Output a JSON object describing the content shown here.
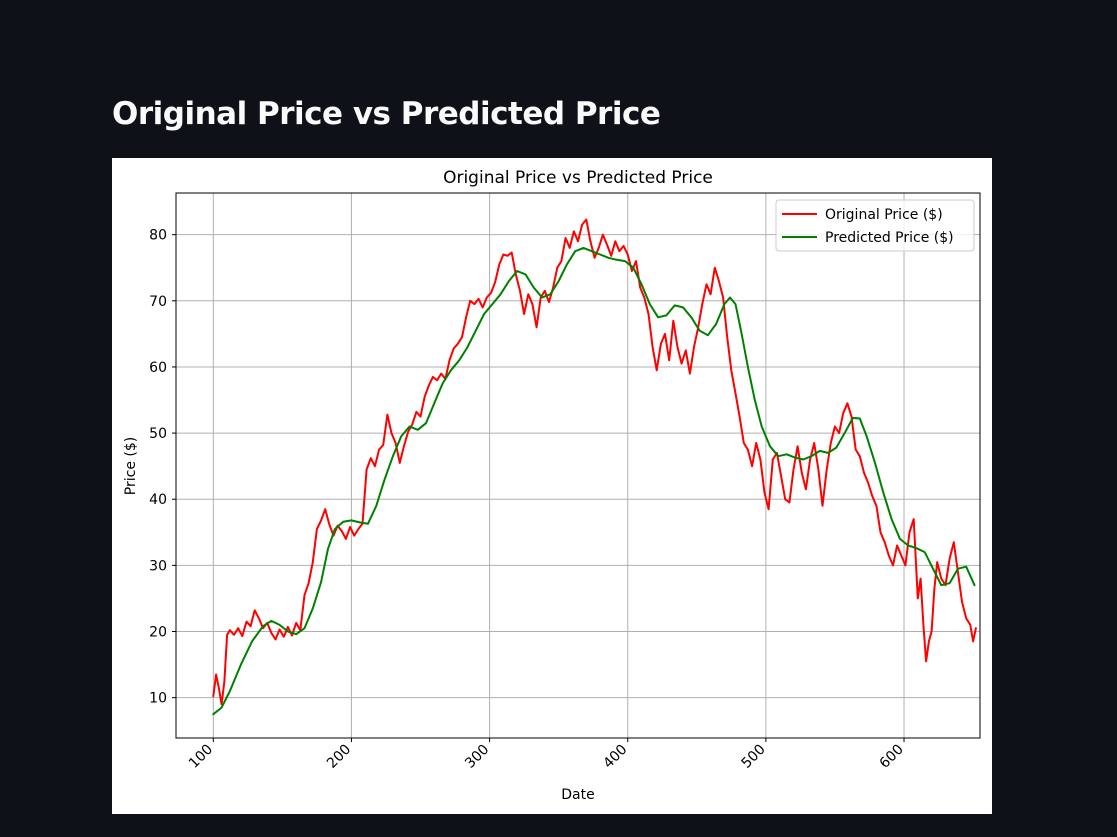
{
  "page": {
    "title": "Original Price vs Predicted Price"
  },
  "chart_data": {
    "type": "line",
    "title": "Original Price vs Predicted Price",
    "xlabel": "Date",
    "ylabel": "Price ($)",
    "xlim": [
      73,
      655
    ],
    "ylim": [
      3.9,
      86.3
    ],
    "xticks": [
      100,
      200,
      300,
      400,
      500,
      600
    ],
    "yticks": [
      10,
      20,
      30,
      40,
      50,
      60,
      70,
      80
    ],
    "grid": true,
    "legend_position": "top-right",
    "series": [
      {
        "name": "Original Price ($)",
        "color": "#ff0000",
        "points": [
          [
            100,
            10.2
          ],
          [
            102,
            13.5
          ],
          [
            104,
            11.5
          ],
          [
            106,
            9.0
          ],
          [
            108,
            12.5
          ],
          [
            110,
            19.5
          ],
          [
            112,
            20.2
          ],
          [
            115,
            19.5
          ],
          [
            118,
            20.5
          ],
          [
            121,
            19.3
          ],
          [
            124,
            21.5
          ],
          [
            127,
            20.8
          ],
          [
            130,
            23.2
          ],
          [
            133,
            22.0
          ],
          [
            136,
            20.5
          ],
          [
            139,
            21.3
          ],
          [
            142,
            19.8
          ],
          [
            145,
            18.8
          ],
          [
            148,
            20.3
          ],
          [
            151,
            19.2
          ],
          [
            154,
            20.7
          ],
          [
            157,
            19.4
          ],
          [
            160,
            21.3
          ],
          [
            163,
            20.2
          ],
          [
            166,
            25.5
          ],
          [
            169,
            27.3
          ],
          [
            172,
            30.5
          ],
          [
            175,
            35.5
          ],
          [
            178,
            36.8
          ],
          [
            181,
            38.5
          ],
          [
            184,
            36.2
          ],
          [
            187,
            34.5
          ],
          [
            190,
            36.0
          ],
          [
            193,
            35.2
          ],
          [
            196,
            34.0
          ],
          [
            199,
            35.8
          ],
          [
            202,
            34.5
          ],
          [
            205,
            35.5
          ],
          [
            208,
            36.3
          ],
          [
            211,
            44.5
          ],
          [
            214,
            46.2
          ],
          [
            217,
            45.0
          ],
          [
            220,
            47.5
          ],
          [
            223,
            48.2
          ],
          [
            226,
            52.8
          ],
          [
            229,
            50.0
          ],
          [
            232,
            48.5
          ],
          [
            235,
            45.5
          ],
          [
            238,
            48.0
          ],
          [
            241,
            50.2
          ],
          [
            244,
            51.3
          ],
          [
            247,
            53.2
          ],
          [
            250,
            52.5
          ],
          [
            253,
            55.5
          ],
          [
            256,
            57.2
          ],
          [
            259,
            58.5
          ],
          [
            262,
            58.0
          ],
          [
            265,
            59.0
          ],
          [
            268,
            58.2
          ],
          [
            271,
            61.0
          ],
          [
            274,
            62.8
          ],
          [
            277,
            63.5
          ],
          [
            280,
            64.5
          ],
          [
            283,
            67.5
          ],
          [
            286,
            70.0
          ],
          [
            289,
            69.5
          ],
          [
            292,
            70.3
          ],
          [
            295,
            69.0
          ],
          [
            298,
            70.5
          ],
          [
            301,
            71.2
          ],
          [
            304,
            72.8
          ],
          [
            307,
            75.5
          ],
          [
            310,
            77.0
          ],
          [
            313,
            76.8
          ],
          [
            316,
            77.3
          ],
          [
            319,
            74.0
          ],
          [
            322,
            71.5
          ],
          [
            325,
            68.0
          ],
          [
            328,
            71.0
          ],
          [
            331,
            69.5
          ],
          [
            334,
            66.0
          ],
          [
            337,
            70.5
          ],
          [
            340,
            71.5
          ],
          [
            343,
            69.8
          ],
          [
            346,
            72.0
          ],
          [
            349,
            75.0
          ],
          [
            352,
            76.0
          ],
          [
            355,
            79.5
          ],
          [
            358,
            78.0
          ],
          [
            361,
            80.5
          ],
          [
            364,
            79.0
          ],
          [
            367,
            81.5
          ],
          [
            370,
            82.3
          ],
          [
            373,
            79.0
          ],
          [
            376,
            76.5
          ],
          [
            379,
            78.0
          ],
          [
            382,
            80.0
          ],
          [
            385,
            78.5
          ],
          [
            388,
            76.8
          ],
          [
            391,
            79.0
          ],
          [
            394,
            77.5
          ],
          [
            397,
            78.3
          ],
          [
            400,
            77.0
          ],
          [
            403,
            74.5
          ],
          [
            406,
            76.0
          ],
          [
            409,
            72.0
          ],
          [
            412,
            70.5
          ],
          [
            415,
            68.0
          ],
          [
            418,
            63.0
          ],
          [
            421,
            59.5
          ],
          [
            424,
            63.5
          ],
          [
            427,
            65.0
          ],
          [
            430,
            61.0
          ],
          [
            433,
            67.0
          ],
          [
            436,
            63.0
          ],
          [
            439,
            60.5
          ],
          [
            442,
            62.5
          ],
          [
            445,
            59.0
          ],
          [
            448,
            63.0
          ],
          [
            451,
            66.0
          ],
          [
            454,
            69.5
          ],
          [
            457,
            72.5
          ],
          [
            460,
            71.0
          ],
          [
            463,
            75.0
          ],
          [
            466,
            73.0
          ],
          [
            469,
            70.5
          ],
          [
            472,
            64.5
          ],
          [
            475,
            59.5
          ],
          [
            478,
            56.0
          ],
          [
            481,
            52.5
          ],
          [
            484,
            48.5
          ],
          [
            487,
            47.5
          ],
          [
            490,
            45.0
          ],
          [
            493,
            48.5
          ],
          [
            496,
            46.0
          ],
          [
            499,
            41.0
          ],
          [
            502,
            38.5
          ],
          [
            505,
            46.0
          ],
          [
            508,
            47.0
          ],
          [
            511,
            43.5
          ],
          [
            514,
            40.0
          ],
          [
            517,
            39.5
          ],
          [
            520,
            44.5
          ],
          [
            523,
            48.0
          ],
          [
            526,
            44.0
          ],
          [
            529,
            41.5
          ],
          [
            532,
            46.0
          ],
          [
            535,
            48.5
          ],
          [
            538,
            44.5
          ],
          [
            541,
            39.0
          ],
          [
            544,
            44.5
          ],
          [
            547,
            48.5
          ],
          [
            550,
            51.0
          ],
          [
            553,
            50.0
          ],
          [
            556,
            53.0
          ],
          [
            559,
            54.5
          ],
          [
            562,
            52.5
          ],
          [
            565,
            47.5
          ],
          [
            568,
            46.5
          ],
          [
            571,
            44.0
          ],
          [
            574,
            42.5
          ],
          [
            577,
            40.5
          ],
          [
            580,
            39.0
          ],
          [
            583,
            35.0
          ],
          [
            586,
            33.5
          ],
          [
            589,
            31.5
          ],
          [
            592,
            30.0
          ],
          [
            595,
            33.0
          ],
          [
            598,
            31.5
          ],
          [
            601,
            30.0
          ],
          [
            604,
            35.0
          ],
          [
            607,
            37.0
          ],
          [
            610,
            25.0
          ],
          [
            612,
            28.0
          ],
          [
            614,
            21.0
          ],
          [
            616,
            15.5
          ],
          [
            618,
            18.5
          ],
          [
            620,
            20.0
          ],
          [
            622,
            26.5
          ],
          [
            624,
            30.5
          ],
          [
            627,
            28.0
          ],
          [
            630,
            27.0
          ],
          [
            633,
            31.0
          ],
          [
            636,
            33.5
          ],
          [
            639,
            29.0
          ],
          [
            642,
            24.5
          ],
          [
            645,
            22.0
          ],
          [
            648,
            21.0
          ],
          [
            650,
            18.5
          ],
          [
            652,
            20.5
          ]
        ]
      },
      {
        "name": "Predicted Price ($)",
        "color": "#008000",
        "points": [
          [
            100,
            7.5
          ],
          [
            106,
            8.5
          ],
          [
            112,
            11.0
          ],
          [
            120,
            15.0
          ],
          [
            128,
            18.5
          ],
          [
            136,
            20.8
          ],
          [
            142,
            21.6
          ],
          [
            148,
            21.0
          ],
          [
            154,
            20.0
          ],
          [
            160,
            19.6
          ],
          [
            166,
            20.5
          ],
          [
            172,
            23.5
          ],
          [
            178,
            27.5
          ],
          [
            183,
            32.5
          ],
          [
            188,
            35.5
          ],
          [
            194,
            36.6
          ],
          [
            200,
            36.8
          ],
          [
            206,
            36.5
          ],
          [
            212,
            36.3
          ],
          [
            218,
            39.0
          ],
          [
            224,
            43.0
          ],
          [
            230,
            46.5
          ],
          [
            236,
            49.5
          ],
          [
            242,
            51.0
          ],
          [
            248,
            50.5
          ],
          [
            254,
            51.5
          ],
          [
            260,
            54.5
          ],
          [
            266,
            57.5
          ],
          [
            272,
            59.5
          ],
          [
            278,
            61.0
          ],
          [
            284,
            63.0
          ],
          [
            290,
            65.5
          ],
          [
            296,
            68.0
          ],
          [
            302,
            69.5
          ],
          [
            308,
            71.0
          ],
          [
            314,
            73.0
          ],
          [
            320,
            74.5
          ],
          [
            326,
            74.0
          ],
          [
            332,
            72.0
          ],
          [
            338,
            70.5
          ],
          [
            344,
            71.0
          ],
          [
            350,
            73.0
          ],
          [
            356,
            75.5
          ],
          [
            362,
            77.5
          ],
          [
            368,
            78.0
          ],
          [
            374,
            77.5
          ],
          [
            380,
            77.0
          ],
          [
            386,
            76.5
          ],
          [
            392,
            76.2
          ],
          [
            398,
            76.0
          ],
          [
            404,
            75.0
          ],
          [
            410,
            72.5
          ],
          [
            416,
            69.5
          ],
          [
            422,
            67.5
          ],
          [
            428,
            67.8
          ],
          [
            434,
            69.3
          ],
          [
            440,
            69.0
          ],
          [
            446,
            67.5
          ],
          [
            452,
            65.5
          ],
          [
            458,
            64.8
          ],
          [
            464,
            66.5
          ],
          [
            470,
            69.5
          ],
          [
            474,
            70.5
          ],
          [
            478,
            69.5
          ],
          [
            482,
            65.5
          ],
          [
            487,
            60.0
          ],
          [
            492,
            55.0
          ],
          [
            497,
            51.0
          ],
          [
            503,
            48.0
          ],
          [
            509,
            46.5
          ],
          [
            515,
            46.8
          ],
          [
            521,
            46.3
          ],
          [
            527,
            46.0
          ],
          [
            533,
            46.5
          ],
          [
            539,
            47.3
          ],
          [
            545,
            47.0
          ],
          [
            551,
            47.8
          ],
          [
            557,
            50.0
          ],
          [
            563,
            52.3
          ],
          [
            568,
            52.2
          ],
          [
            573,
            49.5
          ],
          [
            579,
            45.5
          ],
          [
            585,
            41.0
          ],
          [
            591,
            37.0
          ],
          [
            597,
            34.0
          ],
          [
            603,
            33.0
          ],
          [
            609,
            32.6
          ],
          [
            615,
            32.0
          ],
          [
            621,
            29.5
          ],
          [
            627,
            27.0
          ],
          [
            633,
            27.3
          ],
          [
            639,
            29.5
          ],
          [
            645,
            29.8
          ],
          [
            651,
            27.0
          ]
        ]
      }
    ]
  }
}
